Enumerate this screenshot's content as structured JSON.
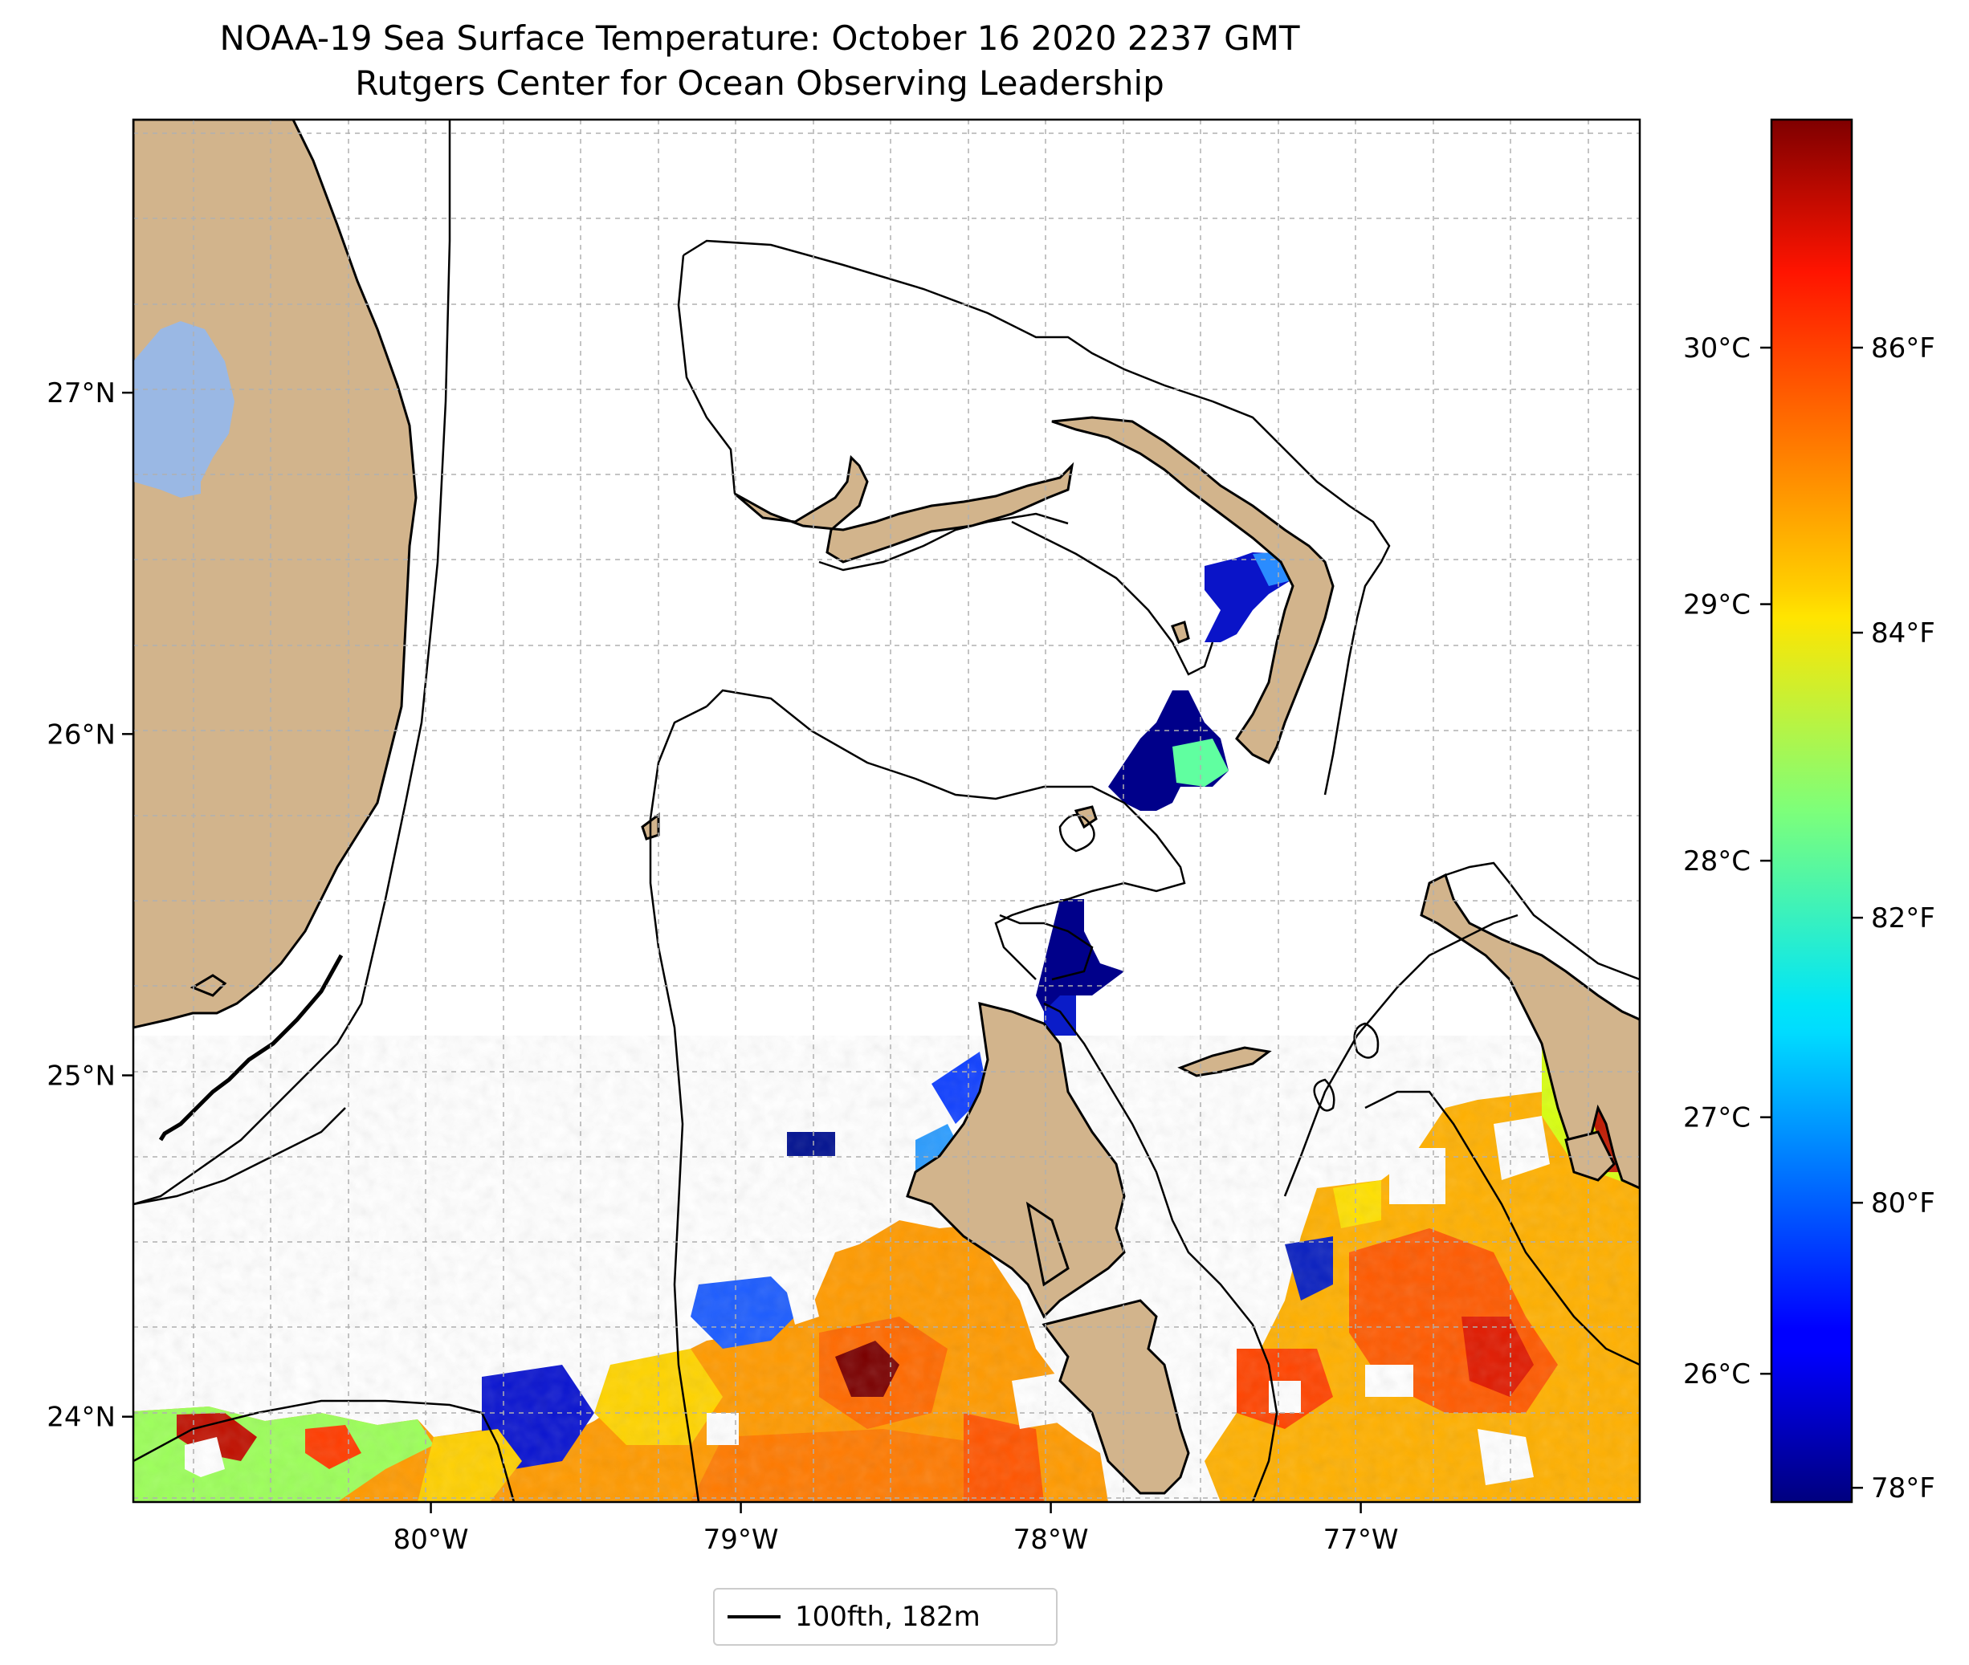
{
  "title": {
    "line1": "NOAA-19 Sea Surface Temperature: October 16 2020 2237 GMT",
    "line2": "Rutgers Center for Ocean Observing Leadership"
  },
  "map": {
    "projection": "PlateCarree",
    "lon_range": [
      -80.96,
      -76.1
    ],
    "lat_range": [
      23.75,
      27.8
    ],
    "gridlines": true,
    "lon_ticks": [
      {
        "value": -80,
        "label": "80°W"
      },
      {
        "value": -79,
        "label": "79°W"
      },
      {
        "value": -78,
        "label": "78°W"
      },
      {
        "value": -77,
        "label": "77°W"
      }
    ],
    "lat_ticks": [
      {
        "value": 24,
        "label": "24°N"
      },
      {
        "value": 25,
        "label": "25°N"
      },
      {
        "value": 26,
        "label": "26°N"
      },
      {
        "value": 27,
        "label": "27°N"
      }
    ],
    "colors": {
      "land": "#d2b48c",
      "lake": "#9ab8e4",
      "ocean": "#ffffff",
      "coastline": "#000000",
      "isobath": "#000000"
    }
  },
  "colorbar": {
    "cmap": "jet",
    "range_f": [
      77.9,
      87.6
    ],
    "celsius_ticks": [
      {
        "value": 26,
        "label": "26°C"
      },
      {
        "value": 27,
        "label": "27°C"
      },
      {
        "value": 28,
        "label": "28°C"
      },
      {
        "value": 29,
        "label": "29°C"
      },
      {
        "value": 30,
        "label": "30°C"
      }
    ],
    "fahrenheit_ticks": [
      {
        "value": 78,
        "label": "78°F"
      },
      {
        "value": 80,
        "label": "80°F"
      },
      {
        "value": 82,
        "label": "82°F"
      },
      {
        "value": 84,
        "label": "84°F"
      },
      {
        "value": 86,
        "label": "86°F"
      }
    ]
  },
  "legend": {
    "label": "100fth, 182m",
    "placement": "bottom-center"
  }
}
